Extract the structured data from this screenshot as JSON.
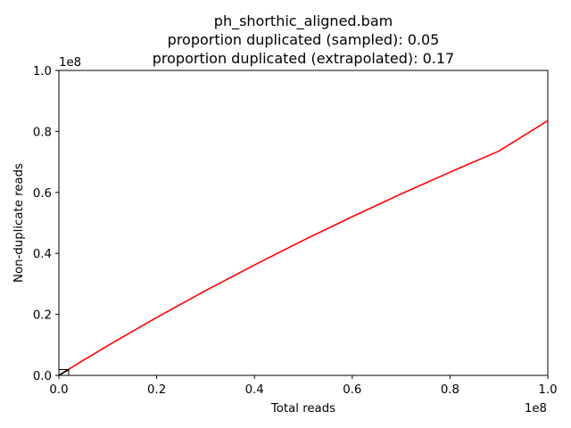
{
  "chart_data": {
    "type": "line",
    "title": "ph_shorthic_aligned.bam",
    "subtitle_lines": [
      "proportion duplicated (sampled): 0.05",
      "proportion duplicated (extrapolated): 0.17"
    ],
    "xlabel": "Total reads",
    "ylabel": "Non-duplicate reads",
    "x_scale_label": "1e8",
    "y_scale_label": "1e8",
    "xlim": [
      0,
      1.0
    ],
    "ylim": [
      0,
      1.0
    ],
    "xticks": [
      "0.0",
      "0.2",
      "0.4",
      "0.6",
      "0.8",
      "1.0"
    ],
    "yticks": [
      "0.0",
      "0.2",
      "0.4",
      "0.6",
      "0.8",
      "1.0"
    ],
    "grid": false,
    "colors": {
      "extrapolated_line": "#ff0000",
      "sampled_line": "#000000",
      "axes": "#000000"
    },
    "series": [
      {
        "color": "#ff0000",
        "x": [
          0,
          0.05,
          0.1,
          0.2,
          0.3,
          0.4,
          0.5,
          0.6,
          0.7,
          0.8,
          0.9,
          1.0
        ],
        "y": [
          0,
          0.0495,
          0.0975,
          0.19,
          0.278,
          0.362,
          0.443,
          0.5205,
          0.595,
          0.6665,
          0.7355,
          0.8355
        ]
      },
      {
        "color": "#000000",
        "x": [
          0,
          0.005,
          0.01,
          0.015,
          0.02
        ],
        "y": [
          0,
          0.0049,
          0.0097,
          0.0144,
          0.019
        ]
      }
    ]
  }
}
